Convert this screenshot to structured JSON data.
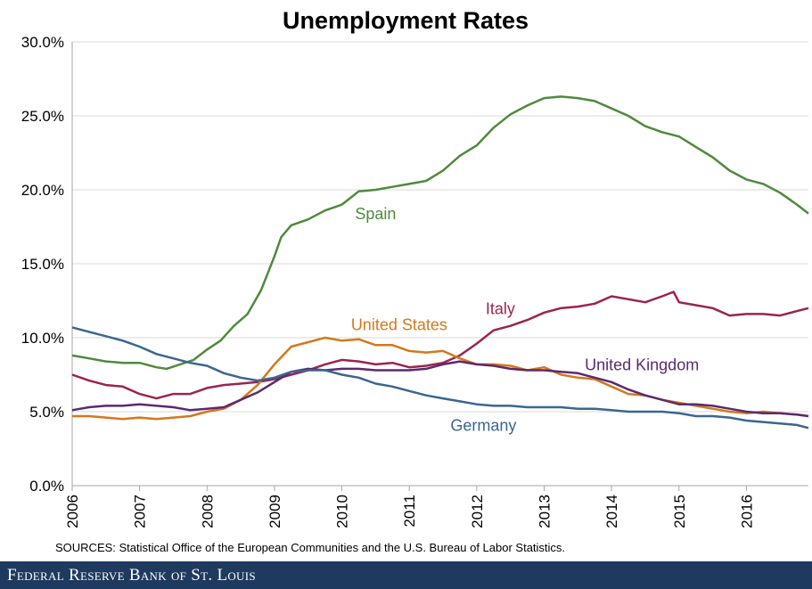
{
  "chart_data": {
    "type": "line",
    "title": "Unemployment Rates",
    "xlabel": "",
    "ylabel": "",
    "xlim": [
      2006.0,
      2016.92
    ],
    "ylim": [
      0,
      30
    ],
    "y_ticks": [
      "0.0%",
      "5.0%",
      "10.0%",
      "15.0%",
      "20.0%",
      "25.0%",
      "30.0%"
    ],
    "x_ticks": [
      "2006",
      "2007",
      "2008",
      "2009",
      "2010",
      "2011",
      "2012",
      "2013",
      "2014",
      "2015",
      "2016"
    ],
    "grid": "horizontal",
    "series": [
      {
        "name": "Spain",
        "color": "#4f8a3c",
        "x": [
          2006.0,
          2006.25,
          2006.5,
          2006.75,
          2007.0,
          2007.25,
          2007.4,
          2007.6,
          2007.8,
          2008.0,
          2008.2,
          2008.4,
          2008.6,
          2008.8,
          2009.0,
          2009.1,
          2009.25,
          2009.5,
          2009.75,
          2010.0,
          2010.25,
          2010.5,
          2010.75,
          2011.0,
          2011.25,
          2011.5,
          2011.75,
          2012.0,
          2012.25,
          2012.5,
          2012.75,
          2013.0,
          2013.25,
          2013.5,
          2013.75,
          2014.0,
          2014.25,
          2014.5,
          2014.75,
          2015.0,
          2015.25,
          2015.5,
          2015.75,
          2016.0,
          2016.25,
          2016.5,
          2016.75,
          2016.92
        ],
        "values": [
          8.8,
          8.6,
          8.4,
          8.3,
          8.3,
          8.0,
          7.9,
          8.2,
          8.5,
          9.2,
          9.8,
          10.8,
          11.6,
          13.2,
          15.5,
          16.8,
          17.6,
          18.0,
          18.6,
          19.0,
          19.9,
          20.0,
          20.2,
          20.4,
          20.6,
          21.3,
          22.3,
          23.0,
          24.2,
          25.1,
          25.7,
          26.2,
          26.3,
          26.2,
          26.0,
          25.5,
          25.0,
          24.3,
          23.9,
          23.6,
          22.9,
          22.2,
          21.3,
          20.7,
          20.4,
          19.8,
          19.0,
          18.4
        ]
      },
      {
        "name": "Italy",
        "color": "#9b2350",
        "x": [
          2006.0,
          2006.25,
          2006.5,
          2006.75,
          2007.0,
          2007.25,
          2007.5,
          2007.75,
          2008.0,
          2008.25,
          2008.5,
          2008.75,
          2009.0,
          2009.25,
          2009.5,
          2009.75,
          2010.0,
          2010.25,
          2010.5,
          2010.75,
          2011.0,
          2011.25,
          2011.5,
          2011.75,
          2012.0,
          2012.25,
          2012.5,
          2012.75,
          2013.0,
          2013.25,
          2013.5,
          2013.75,
          2014.0,
          2014.25,
          2014.5,
          2014.75,
          2014.92,
          2015.0,
          2015.25,
          2015.5,
          2015.75,
          2016.0,
          2016.25,
          2016.5,
          2016.75,
          2016.92
        ],
        "values": [
          7.5,
          7.1,
          6.8,
          6.7,
          6.2,
          5.9,
          6.2,
          6.2,
          6.6,
          6.8,
          6.9,
          7.0,
          7.2,
          7.5,
          7.8,
          8.2,
          8.5,
          8.4,
          8.2,
          8.3,
          8.0,
          8.1,
          8.3,
          8.8,
          9.6,
          10.5,
          10.8,
          11.2,
          11.7,
          12.0,
          12.1,
          12.3,
          12.8,
          12.6,
          12.4,
          12.8,
          13.1,
          12.4,
          12.2,
          12.0,
          11.5,
          11.6,
          11.6,
          11.5,
          11.8,
          12.0
        ]
      },
      {
        "name": "United States",
        "color": "#d4781c",
        "x": [
          2006.0,
          2006.25,
          2006.5,
          2006.75,
          2007.0,
          2007.25,
          2007.5,
          2007.75,
          2008.0,
          2008.25,
          2008.5,
          2008.75,
          2009.0,
          2009.25,
          2009.5,
          2009.75,
          2010.0,
          2010.25,
          2010.5,
          2010.75,
          2011.0,
          2011.25,
          2011.5,
          2011.75,
          2012.0,
          2012.25,
          2012.5,
          2012.75,
          2013.0,
          2013.25,
          2013.5,
          2013.75,
          2014.0,
          2014.25,
          2014.5,
          2014.75,
          2015.0,
          2015.25,
          2015.5,
          2015.75,
          2016.0,
          2016.25,
          2016.5,
          2016.75,
          2016.92
        ],
        "values": [
          4.7,
          4.7,
          4.6,
          4.5,
          4.6,
          4.5,
          4.6,
          4.7,
          5.0,
          5.2,
          5.8,
          6.8,
          8.2,
          9.4,
          9.7,
          10.0,
          9.8,
          9.9,
          9.5,
          9.5,
          9.1,
          9.0,
          9.1,
          8.6,
          8.2,
          8.2,
          8.1,
          7.8,
          8.0,
          7.5,
          7.3,
          7.2,
          6.7,
          6.2,
          6.1,
          5.8,
          5.6,
          5.4,
          5.2,
          5.0,
          4.9,
          5.0,
          4.9,
          4.8,
          4.7
        ]
      },
      {
        "name": "United Kingdom",
        "color": "#5b2a6e",
        "x": [
          2006.0,
          2006.25,
          2006.5,
          2006.75,
          2007.0,
          2007.25,
          2007.5,
          2007.75,
          2008.0,
          2008.25,
          2008.5,
          2008.75,
          2009.0,
          2009.25,
          2009.5,
          2009.75,
          2010.0,
          2010.25,
          2010.5,
          2010.75,
          2011.0,
          2011.25,
          2011.5,
          2011.75,
          2012.0,
          2012.25,
          2012.5,
          2012.75,
          2013.0,
          2013.25,
          2013.5,
          2013.75,
          2014.0,
          2014.25,
          2014.5,
          2014.75,
          2015.0,
          2015.25,
          2015.5,
          2015.75,
          2016.0,
          2016.25,
          2016.5,
          2016.75,
          2016.92
        ],
        "values": [
          5.1,
          5.3,
          5.4,
          5.4,
          5.5,
          5.4,
          5.3,
          5.1,
          5.2,
          5.3,
          5.8,
          6.3,
          7.0,
          7.7,
          7.9,
          7.8,
          7.9,
          7.9,
          7.8,
          7.8,
          7.8,
          7.9,
          8.2,
          8.4,
          8.2,
          8.1,
          7.9,
          7.8,
          7.8,
          7.7,
          7.6,
          7.3,
          7.0,
          6.5,
          6.1,
          5.8,
          5.5,
          5.5,
          5.4,
          5.2,
          5.0,
          4.9,
          4.9,
          4.8,
          4.7
        ]
      },
      {
        "name": "Germany",
        "color": "#3a6690",
        "x": [
          2006.0,
          2006.25,
          2006.5,
          2006.75,
          2007.0,
          2007.25,
          2007.5,
          2007.75,
          2008.0,
          2008.25,
          2008.5,
          2008.75,
          2009.0,
          2009.25,
          2009.5,
          2009.75,
          2010.0,
          2010.25,
          2010.5,
          2010.75,
          2011.0,
          2011.25,
          2011.5,
          2011.75,
          2012.0,
          2012.25,
          2012.5,
          2012.75,
          2013.0,
          2013.25,
          2013.5,
          2013.75,
          2014.0,
          2014.25,
          2014.5,
          2014.75,
          2015.0,
          2015.25,
          2015.5,
          2015.75,
          2016.0,
          2016.25,
          2016.5,
          2016.75,
          2016.92
        ],
        "values": [
          10.7,
          10.4,
          10.1,
          9.8,
          9.4,
          8.9,
          8.6,
          8.3,
          8.1,
          7.6,
          7.3,
          7.1,
          7.3,
          7.7,
          7.8,
          7.8,
          7.5,
          7.3,
          6.9,
          6.7,
          6.4,
          6.1,
          5.9,
          5.7,
          5.5,
          5.4,
          5.4,
          5.3,
          5.3,
          5.3,
          5.2,
          5.2,
          5.1,
          5.0,
          5.0,
          5.0,
          4.9,
          4.7,
          4.7,
          4.6,
          4.4,
          4.3,
          4.2,
          4.1,
          3.9
        ]
      }
    ]
  },
  "sources": "SOURCES: Statistical Office of the European Communities and the U.S. Bureau of Labor Statistics.",
  "footer": {
    "brand": "Federal Reserve Bank of St. Louis",
    "background": "#1f3a5f"
  }
}
